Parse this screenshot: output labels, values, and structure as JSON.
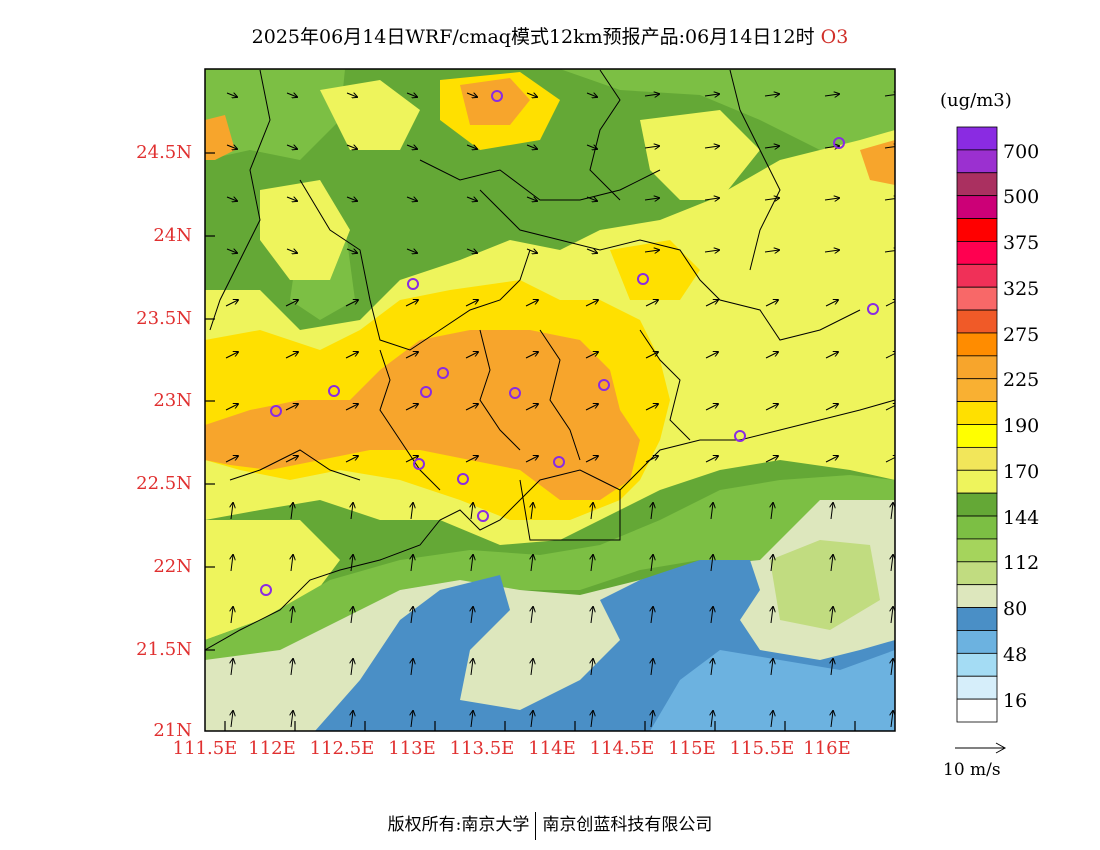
{
  "title": {
    "main": "2025年06月14日WRF/cmaq模式12km预报产品:06月14日12时",
    "species": "O3"
  },
  "axes": {
    "lat_labels": [
      "24.5N",
      "24N",
      "23.5N",
      "23N",
      "22.5N",
      "22N",
      "21.5N",
      "21N"
    ],
    "lon_labels": [
      "111.5E",
      "112E",
      "112.5E",
      "113E",
      "113.5E",
      "114E",
      "114.5E",
      "115E",
      "115.5E",
      "116E"
    ]
  },
  "legend": {
    "units": "(ug/m3)",
    "colors": [
      "#ffffff",
      "#d6eefa",
      "#a4dcf4",
      "#6cb2e0",
      "#4a8fc6",
      "#dde7bd",
      "#c1dc80",
      "#a5d45c",
      "#7cbf44",
      "#64a836",
      "#eef45c",
      "#f2e65a",
      "#ffff00",
      "#ffe000",
      "#f9b032",
      "#f7a52c",
      "#ff8c00",
      "#f05a28",
      "#f86868",
      "#f03058",
      "#ff0050",
      "#ff0000",
      "#cc0077",
      "#aa3060",
      "#9b30d0",
      "#8a2be2"
    ],
    "labels": [
      "16",
      "48",
      "80",
      "112",
      "144",
      "170",
      "190",
      "225",
      "275",
      "325",
      "375",
      "500",
      "700"
    ]
  },
  "wind_key": {
    "label": "10 m/s"
  },
  "footer": {
    "left": "版权所有:南京大学",
    "right": "南京创蓝科技有限公司"
  },
  "colors": {
    "axis_label": "#e03030",
    "station_marker": "#8a2be2",
    "level_green": "#64a836",
    "level_yellow": "#ffff00",
    "level_orange": "#f7a52c",
    "level_blue": "#4a8fc6"
  }
}
